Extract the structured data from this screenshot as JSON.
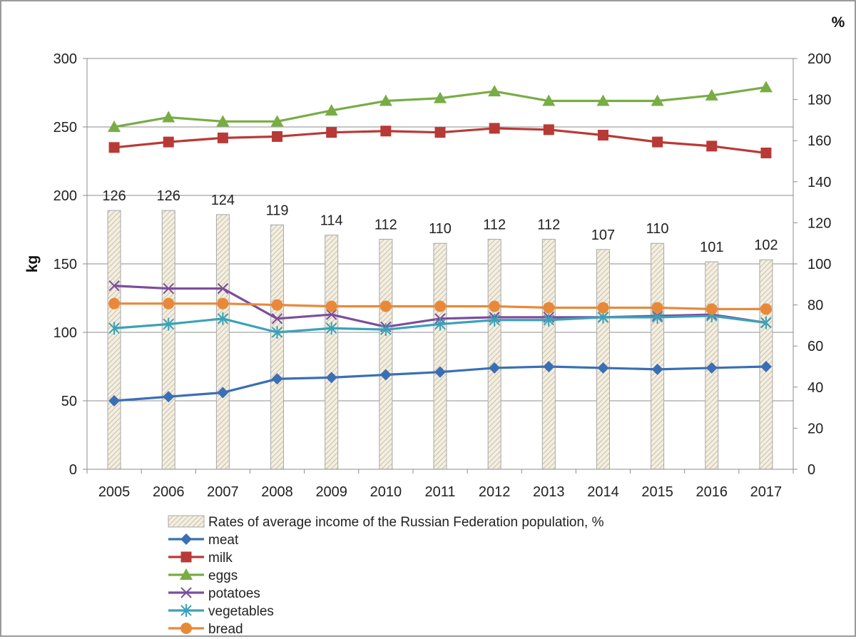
{
  "chart_data": {
    "type": "bar+line",
    "categories": [
      "2005",
      "2006",
      "2007",
      "2008",
      "2009",
      "2010",
      "2011",
      "2012",
      "2013",
      "2014",
      "2015",
      "2016",
      "2017"
    ],
    "left_axis": {
      "label": "kg",
      "ylim": [
        0,
        300
      ],
      "ticks": [
        0,
        50,
        100,
        150,
        200,
        250,
        300
      ],
      "tick_labels": [
        "0",
        "50",
        "100",
        "150",
        "200",
        "250",
        "300"
      ]
    },
    "right_axis": {
      "label": "%",
      "ylim": [
        0,
        200
      ],
      "ticks": [
        0,
        20,
        40,
        60,
        80,
        100,
        120,
        140,
        160,
        180,
        200
      ],
      "tick_labels": [
        "0",
        "20",
        "40",
        "60",
        "80",
        "100",
        "120",
        "140",
        "160",
        "180",
        "200"
      ]
    },
    "bars": {
      "name": "Rates of average income of the Russian Federation population, %",
      "axis": "right",
      "values": [
        126,
        126,
        124,
        119,
        114,
        112,
        110,
        112,
        112,
        107,
        110,
        101,
        102
      ],
      "labels": [
        "126",
        "126",
        "124",
        "119",
        "114",
        "112",
        "110",
        "112",
        "112",
        "107",
        "110",
        "101",
        "102"
      ],
      "fill": "#f3eee0",
      "stroke": "#a8a8a8"
    },
    "series": [
      {
        "name": "meat",
        "color": "#3a6fb5",
        "marker": "diamond",
        "values": [
          50,
          53,
          56,
          66,
          67,
          69,
          71,
          74,
          75,
          74,
          73,
          74,
          75
        ]
      },
      {
        "name": "milk",
        "color": "#b83a36",
        "marker": "square",
        "values": [
          235,
          239,
          242,
          243,
          246,
          247,
          246,
          249,
          248,
          244,
          239,
          236,
          231
        ]
      },
      {
        "name": "eggs",
        "color": "#78ad45",
        "marker": "triangle",
        "values": [
          250,
          257,
          254,
          254,
          262,
          269,
          271,
          276,
          269,
          269,
          269,
          273,
          279
        ]
      },
      {
        "name": "potatoes",
        "color": "#7b4e9c",
        "marker": "x",
        "values": [
          134,
          132,
          132,
          110,
          113,
          104,
          110,
          111,
          111,
          111,
          112,
          113,
          107
        ]
      },
      {
        "name": "vegetables",
        "color": "#3ba2b8",
        "marker": "star",
        "values": [
          103,
          106,
          110,
          100,
          103,
          102,
          106,
          109,
          109,
          111,
          111,
          112,
          107
        ]
      },
      {
        "name": "bread",
        "color": "#e8893a",
        "marker": "circle",
        "values": [
          121,
          121,
          121,
          120,
          119,
          119,
          119,
          119,
          118,
          118,
          118,
          117,
          117
        ]
      }
    ],
    "legend_position": "bottom",
    "grid": "horizontal"
  }
}
